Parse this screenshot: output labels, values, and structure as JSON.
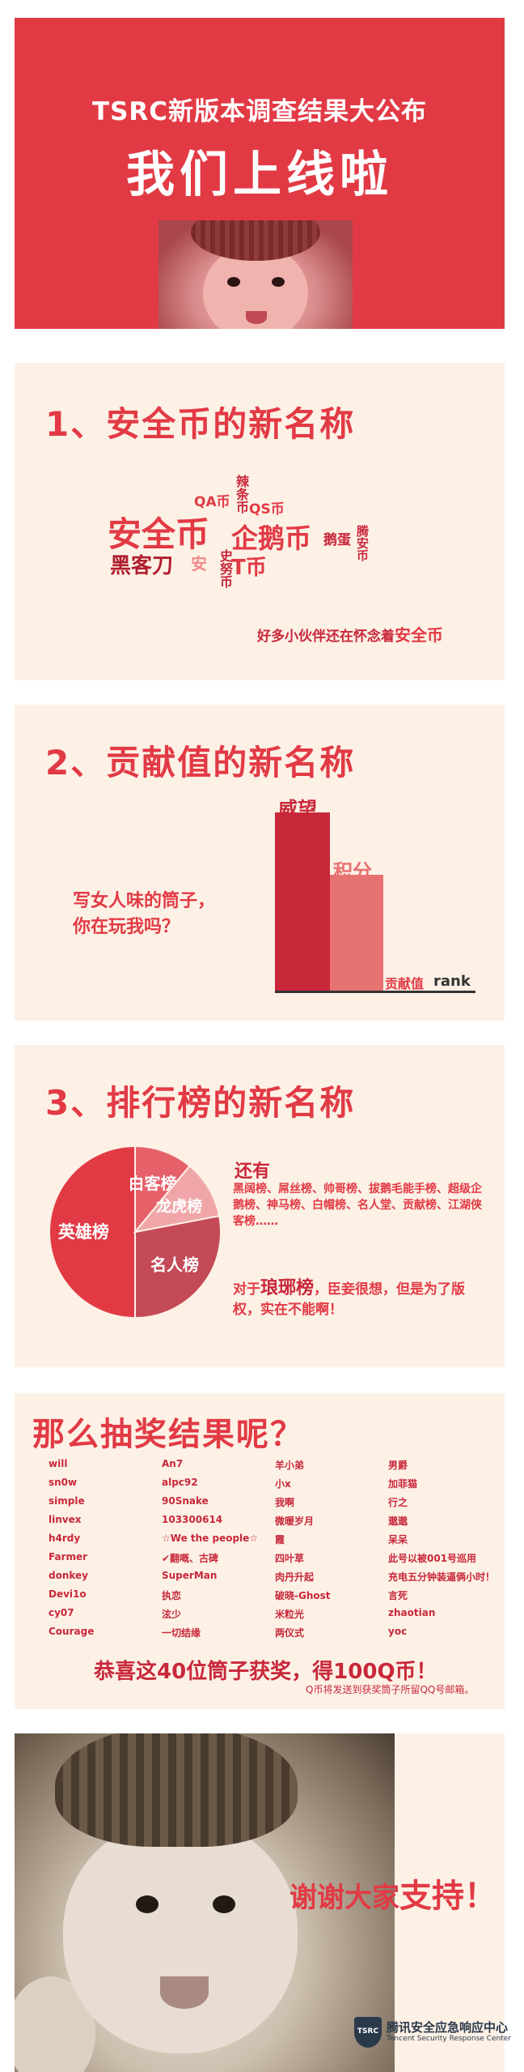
{
  "hero": {
    "title": "TSRC新版本调查结果大公布",
    "headline": "我们上线啦"
  },
  "section1": {
    "heading": "1、安全币的新名称",
    "cloud": {
      "w_la": "辣条币",
      "w_qa": "QA币",
      "w_qs": "QS币",
      "w_main": "安全币",
      "w_qie": "企鹅币",
      "w_egg": "鹅蛋",
      "w_teng": "腾安币",
      "w_hack": "黑客刀",
      "w_an": "安",
      "w_shi": "史努币",
      "w_t": "T币"
    },
    "note_prefix": "好多小伙伴还在怀念着",
    "note_highlight": "安全币"
  },
  "section2": {
    "heading": "2、贡献值的新名称",
    "question_line1": "写女人味的筒子，",
    "question_line2": "你在玩我吗？",
    "bars": [
      {
        "label": "威望",
        "value": 4,
        "color": "#c8283a"
      },
      {
        "label": "积分",
        "value": 2.6,
        "color": "#e77272"
      },
      {
        "label": "贡献值",
        "value": 0,
        "color": "#e23a45"
      },
      {
        "label": "rank",
        "value": 0,
        "color": "#333333"
      }
    ]
  },
  "section3": {
    "heading": "3、排行榜的新名称",
    "pie": [
      {
        "label": "英雄榜",
        "value": 50,
        "color": "#e23a45"
      },
      {
        "label": "白客榜",
        "value": 11,
        "color": "#e6606a"
      },
      {
        "label": "龙虎榜",
        "value": 11,
        "color": "#f0a6a8"
      },
      {
        "label": "名人榜",
        "value": 28,
        "color": "#c44a58"
      }
    ],
    "more_heading": "还有",
    "more_text": "黑阔榜、屌丝榜、帅哥榜、拔鹅毛能手榜、超级企鹅榜、神马榜、白帽榜、名人堂、贡献榜、江湖侠客榜……",
    "lang_prefix": "对于",
    "lang_highlight": "琅琊榜",
    "lang_suffix": "，臣妾很想，但是为了版权，实在不能啊！"
  },
  "section4": {
    "heading": "那么抽奖结果呢？",
    "columns": [
      [
        "will",
        "sn0w",
        "simple",
        "linvex",
        "h4rdy",
        "Farmer",
        "donkey",
        "Devi1o",
        "cy07",
        "Courage"
      ],
      [
        "An7",
        "alpc92",
        "90Snake",
        "103300614",
        "☆We the people☆",
        "✔翻嘅、古碑",
        "SuperMan",
        "执恋",
        "泫少",
        "一切结缘"
      ],
      [
        "羊小弟",
        "小x",
        "我啊",
        "微暖岁月",
        "霞",
        "四叶草",
        "肉丹升起",
        "破晓-Ghost",
        "米粒光",
        "两仪式"
      ],
      [
        "男爵",
        "加菲猫",
        "行之",
        "邈邈",
        "呆呆",
        "此号以被001号巡用",
        "充电五分钟装逼俩小时！",
        "言死",
        "zhaotian",
        "yoc"
      ]
    ],
    "congrats": "恭喜这40位筒子获奖，得100Q币！",
    "footnote": "Q币将发送到获奖筒子所留QQ号邮箱。"
  },
  "footer": {
    "thanks_a": "谢谢大家",
    "thanks_b": "支持！",
    "logo_mark": "TSRC",
    "logo_cn": "腾讯安全应急响应中心",
    "logo_en": "Tencent Security Response Center"
  }
}
